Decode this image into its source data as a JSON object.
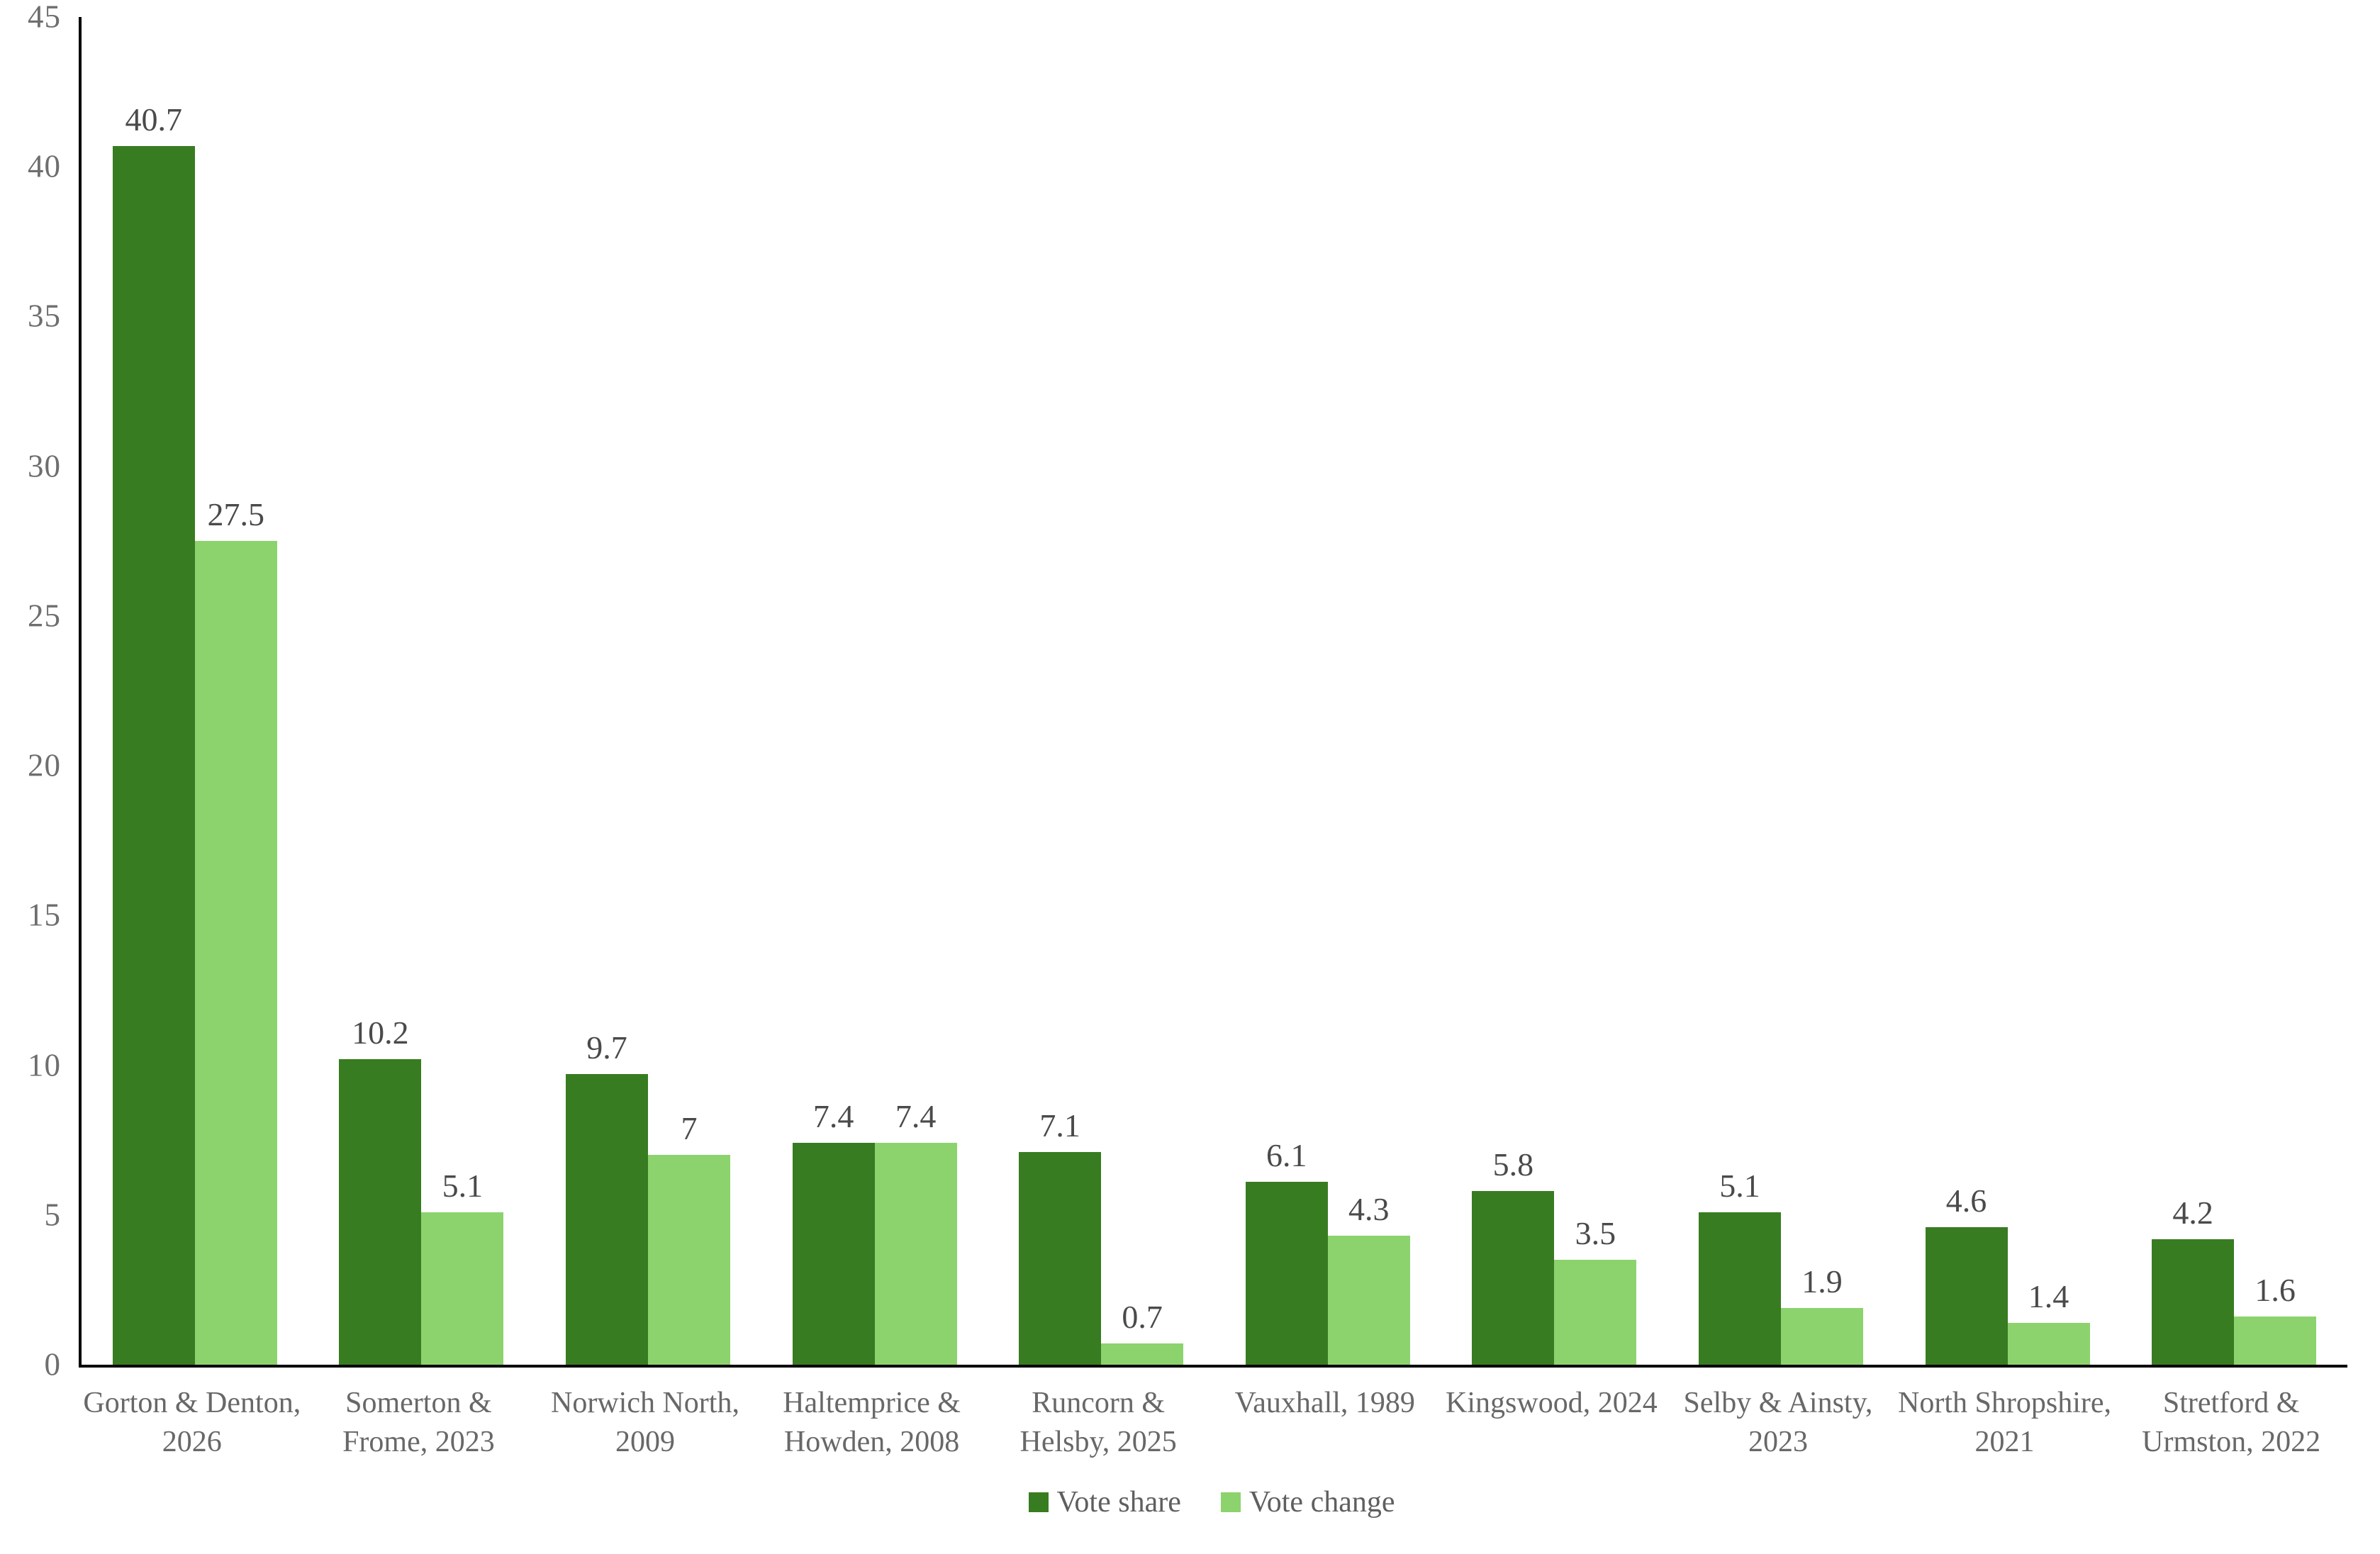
{
  "chart_data": {
    "type": "bar",
    "categories": [
      "Gorton & Denton, 2026",
      "Somerton & Frome, 2023",
      "Norwich North, 2009",
      "Haltemprice & Howden, 2008",
      "Runcorn & Helsby, 2025",
      "Vauxhall, 1989",
      "Kingswood, 2024",
      "Selby & Ainsty, 2023",
      "North Shropshire, 2021",
      "Stretford & Urmston, 2022"
    ],
    "series": [
      {
        "name": "Vote share",
        "color": "#387C21",
        "values": [
          40.7,
          10.2,
          9.7,
          7.4,
          7.1,
          6.1,
          5.8,
          5.1,
          4.6,
          4.2
        ]
      },
      {
        "name": "Vote change",
        "color": "#8CD36E",
        "values": [
          27.5,
          5.1,
          7,
          7.4,
          0.7,
          4.3,
          3.5,
          1.9,
          1.4,
          1.6
        ]
      }
    ],
    "title": "",
    "xlabel": "",
    "ylabel": "",
    "ylim": [
      0,
      45
    ],
    "yticks": [
      0,
      5,
      10,
      15,
      20,
      25,
      30,
      35,
      40,
      45
    ],
    "grid": false,
    "data_labels_shown": true,
    "legend_position": "bottom"
  },
  "colors": {
    "background": "#ffffff",
    "axis_line": "#000000",
    "tick_label": "#6e6e6e",
    "category_label": "#686868",
    "data_label": "#4a4a4a",
    "legend_text": "#5f5f5f",
    "series_dark_green": "#387C21",
    "series_light_green": "#8CD36E"
  }
}
